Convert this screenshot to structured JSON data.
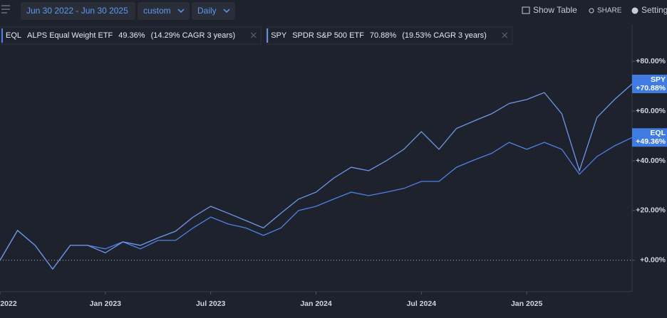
{
  "toolbar": {
    "date_range": "Jun 30 2022 - Jun 30 2025",
    "range_mode": "custom",
    "interval": "Daily",
    "show_table": "Show Table",
    "share": "SHARE",
    "settings": "Setting"
  },
  "chart_data": {
    "type": "line",
    "x": [
      "2022-07",
      "2022-08",
      "2022-09",
      "2022-10",
      "2022-11",
      "2022-12",
      "2023-01",
      "2023-02",
      "2023-03",
      "2023-04",
      "2023-05",
      "2023-06",
      "2023-07",
      "2023-08",
      "2023-09",
      "2023-10",
      "2023-11",
      "2023-12",
      "2024-01",
      "2024-02",
      "2024-03",
      "2024-04",
      "2024-05",
      "2024-06",
      "2024-07",
      "2024-08",
      "2024-09",
      "2024-10",
      "2024-11",
      "2024-12",
      "2025-01",
      "2025-02",
      "2025-03",
      "2025-04",
      "2025-05",
      "2025-06",
      "2025-07"
    ],
    "xlim": [
      "2022-07",
      "2025-07"
    ],
    "xticks": [
      {
        "value": "2022-07",
        "label": "2022"
      },
      {
        "value": "2023-01",
        "label": "Jan 2023"
      },
      {
        "value": "2023-07",
        "label": "Jul 2023"
      },
      {
        "value": "2024-01",
        "label": "Jan 2024"
      },
      {
        "value": "2024-07",
        "label": "Jul 2024"
      },
      {
        "value": "2025-01",
        "label": "Jan 2025"
      }
    ],
    "ylim": [
      -12.6,
      94.6
    ],
    "yticks": [
      {
        "value": 0,
        "label": "+0.00%"
      },
      {
        "value": 20,
        "label": "+20.00%"
      },
      {
        "value": 40,
        "label": "+40.00%"
      },
      {
        "value": 60,
        "label": "+60.00%"
      },
      {
        "value": 80,
        "label": "+80.00%"
      }
    ],
    "series": [
      {
        "name": "EQL",
        "description": "ALPS Equal Weight ETF",
        "return": "49.36%",
        "cagr": "(14.29% CAGR 3 years)",
        "color": "#4f80e6",
        "values": [
          0,
          12,
          6,
          -3.5,
          6,
          6,
          4.6,
          7.4,
          4.6,
          8,
          8,
          13,
          17.4,
          14.6,
          13,
          10,
          13,
          20,
          21.7,
          24.6,
          27.4,
          26,
          27.4,
          28.9,
          31.7,
          31.7,
          37.4,
          40.3,
          43,
          47.4,
          44.6,
          47.4,
          44.6,
          34.6,
          41.7,
          46,
          49.36
        ],
        "value_labels": [
          null,
          null,
          null,
          null,
          null,
          null,
          null,
          null,
          null,
          null,
          null,
          null,
          null,
          null,
          null,
          null,
          null,
          null,
          null,
          null,
          null,
          null,
          null,
          null,
          null,
          null,
          null,
          null,
          null,
          null,
          null,
          null,
          null,
          null,
          null,
          null,
          "+49.36%"
        ]
      },
      {
        "name": "SPY",
        "description": "SPDR S&P 500 ETF",
        "return": "70.88%",
        "cagr": "(19.53% CAGR 3 years)",
        "color": "#6e97ea",
        "values": [
          0,
          12,
          6,
          -3.5,
          6,
          6,
          3,
          7.4,
          6,
          9,
          11.7,
          17.4,
          21.7,
          18.9,
          16,
          13,
          18.9,
          24.6,
          27.4,
          33,
          37.4,
          36,
          40,
          44.6,
          51.7,
          44.6,
          53,
          56,
          58.9,
          63,
          64.6,
          67.4,
          58.9,
          36,
          57.4,
          64.6,
          70.88
        ],
        "value_labels": [
          null,
          null,
          null,
          null,
          null,
          null,
          null,
          null,
          null,
          null,
          null,
          null,
          null,
          null,
          null,
          null,
          null,
          null,
          null,
          null,
          null,
          null,
          null,
          null,
          null,
          null,
          null,
          null,
          null,
          null,
          null,
          null,
          null,
          null,
          null,
          null,
          "+70.88%"
        ]
      }
    ]
  }
}
